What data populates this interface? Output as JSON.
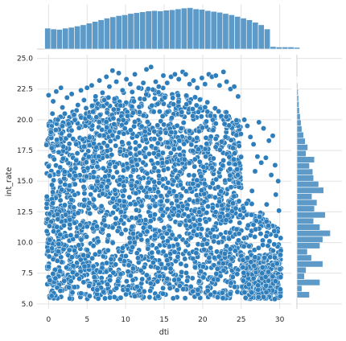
{
  "chart_data": {
    "type": "scatter",
    "subtype": "jointplot",
    "xlabel": "dti",
    "ylabel": "int_rate",
    "xlim": [
      -1.5,
      31.5
    ],
    "ylim": [
      4.6,
      25.3
    ],
    "xticks": [
      0,
      5,
      10,
      15,
      20,
      25,
      30
    ],
    "xtick_labels": [
      "0",
      "5",
      "10",
      "15",
      "20",
      "25",
      "30"
    ],
    "yticks": [
      5.0,
      7.5,
      10.0,
      12.5,
      15.0,
      17.5,
      20.0,
      22.5,
      25.0
    ],
    "ytick_labels": [
      "5.0",
      "7.5",
      "10.0",
      "12.5",
      "15.0",
      "17.5",
      "20.0",
      "22.5",
      "25.0"
    ],
    "grid": true,
    "style": "whitegrid",
    "color": "#2e7ebc",
    "marginal_color": "#5d9ac8",
    "scatter_points": [
      [
        0.0,
        22.0
      ],
      [
        0.5,
        20.5
      ],
      [
        0.3,
        19.0
      ],
      [
        0.6,
        21.5
      ],
      [
        1.0,
        22.3
      ],
      [
        1.2,
        20.0
      ],
      [
        1.6,
        22.6
      ],
      [
        1.8,
        21.0
      ],
      [
        2.1,
        20.5
      ],
      [
        2.4,
        21.8
      ],
      [
        3.0,
        22.1
      ],
      [
        3.3,
        20.4
      ],
      [
        3.8,
        21.2
      ],
      [
        4.2,
        22.4
      ],
      [
        4.6,
        21.6
      ],
      [
        5.0,
        22.6
      ],
      [
        5.6,
        22.8
      ],
      [
        6.1,
        21.9
      ],
      [
        6.6,
        23.2
      ],
      [
        7.0,
        22.2
      ],
      [
        7.5,
        23.5
      ],
      [
        7.9,
        22.7
      ],
      [
        8.3,
        24.0
      ],
      [
        8.8,
        23.1
      ],
      [
        9.1,
        23.8
      ],
      [
        9.6,
        22.4
      ],
      [
        10.1,
        23.3
      ],
      [
        10.6,
        22.9
      ],
      [
        11.2,
        23.7
      ],
      [
        11.7,
        22.6
      ],
      [
        12.3,
        23.0
      ],
      [
        12.7,
        24.1
      ],
      [
        13.3,
        24.3
      ],
      [
        13.9,
        23.1
      ],
      [
        14.3,
        22.7
      ],
      [
        14.9,
        23.6
      ],
      [
        15.4,
        23.0
      ],
      [
        15.9,
        23.5
      ],
      [
        16.4,
        23.7
      ],
      [
        16.9,
        23.3
      ],
      [
        17.4,
        23.9
      ],
      [
        17.8,
        23.7
      ],
      [
        18.3,
        22.9
      ],
      [
        18.8,
        23.2
      ],
      [
        19.3,
        22.6
      ],
      [
        19.9,
        23.4
      ],
      [
        20.3,
        22.9
      ],
      [
        20.8,
        23.7
      ],
      [
        21.2,
        23.5
      ],
      [
        21.7,
        23.6
      ],
      [
        22.2,
        22.8
      ],
      [
        22.7,
        23.9
      ],
      [
        23.1,
        23.1
      ],
      [
        23.6,
        22.5
      ],
      [
        24.1,
        22.7
      ],
      [
        24.6,
        21.9
      ],
      [
        25.4,
        20.0
      ],
      [
        25.8,
        19.5
      ],
      [
        26.2,
        18.6
      ],
      [
        26.6,
        18.0
      ],
      [
        27.1,
        17.0
      ],
      [
        27.3,
        19.8
      ],
      [
        27.9,
        19.3
      ],
      [
        28.2,
        16.9
      ],
      [
        28.6,
        18.3
      ],
      [
        29.1,
        18.7
      ],
      [
        29.4,
        16.3
      ],
      [
        29.8,
        15.0
      ],
      [
        28.9,
        15.5
      ],
      [
        27.6,
        16.5
      ],
      [
        26.8,
        15.8
      ],
      [
        29.5,
        13.9
      ],
      [
        28.3,
        13.1
      ],
      [
        26.4,
        14.2
      ],
      [
        29.9,
        12.6
      ],
      [
        27.4,
        12.1
      ],
      [
        25.9,
        11.4
      ]
    ],
    "marginal_x_bins": {
      "start": -0.5,
      "width": 0.77,
      "counts": [
        0.5,
        0.48,
        0.47,
        0.5,
        0.52,
        0.55,
        0.58,
        0.62,
        0.66,
        0.7,
        0.74,
        0.77,
        0.8,
        0.82,
        0.85,
        0.87,
        0.89,
        0.91,
        0.92,
        0.91,
        0.93,
        0.94,
        0.96,
        0.98,
        0.99,
        0.96,
        0.95,
        0.92,
        0.9,
        0.88,
        0.85,
        0.82,
        0.78,
        0.74,
        0.7,
        0.64,
        0.58,
        0.48,
        0.06,
        0.05,
        0.05,
        0.05,
        0.04
      ]
    },
    "marginal_y_bins": [
      [
        5.5,
        0.3
      ],
      [
        6.0,
        0.12
      ],
      [
        6.5,
        0.55
      ],
      [
        7.0,
        0.18
      ],
      [
        7.5,
        0.22
      ],
      [
        8.0,
        0.62
      ],
      [
        8.5,
        0.35
      ],
      [
        9.0,
        0.25
      ],
      [
        9.5,
        0.55
      ],
      [
        10.0,
        0.62
      ],
      [
        10.5,
        0.8
      ],
      [
        11.0,
        0.55
      ],
      [
        11.5,
        0.4
      ],
      [
        12.0,
        0.68
      ],
      [
        12.5,
        0.42
      ],
      [
        13.0,
        0.48
      ],
      [
        13.5,
        0.36
      ],
      [
        14.0,
        0.64
      ],
      [
        14.5,
        0.52
      ],
      [
        15.0,
        0.4
      ],
      [
        15.5,
        0.38
      ],
      [
        16.0,
        0.3
      ],
      [
        16.5,
        0.42
      ],
      [
        17.0,
        0.22
      ],
      [
        17.5,
        0.26
      ],
      [
        18.0,
        0.2
      ],
      [
        18.5,
        0.16
      ],
      [
        19.0,
        0.12
      ],
      [
        19.5,
        0.1
      ],
      [
        20.0,
        0.08
      ],
      [
        20.5,
        0.06
      ],
      [
        21.0,
        0.05
      ],
      [
        21.5,
        0.04
      ],
      [
        22.0,
        0.03
      ],
      [
        22.5,
        0.02
      ],
      [
        23.0,
        0.01
      ]
    ]
  }
}
